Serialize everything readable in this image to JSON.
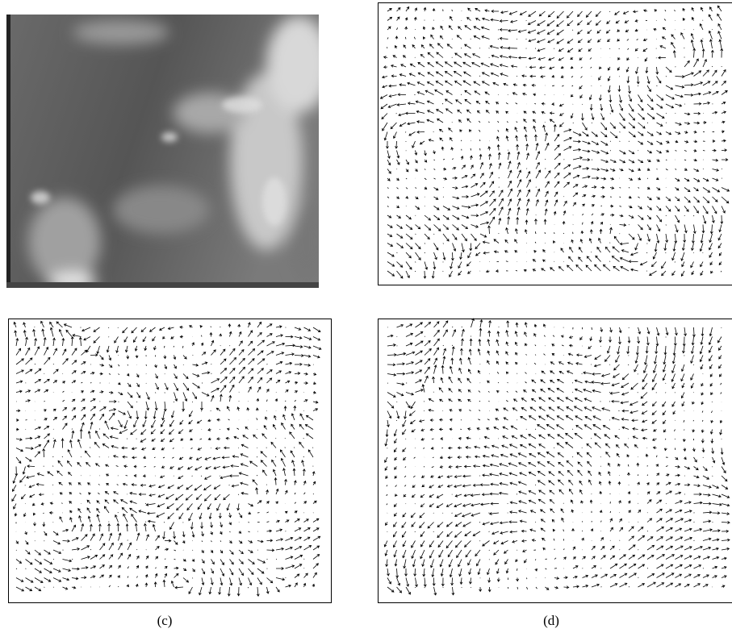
{
  "captions": [
    "(c)",
    "(d)"
  ]
}
